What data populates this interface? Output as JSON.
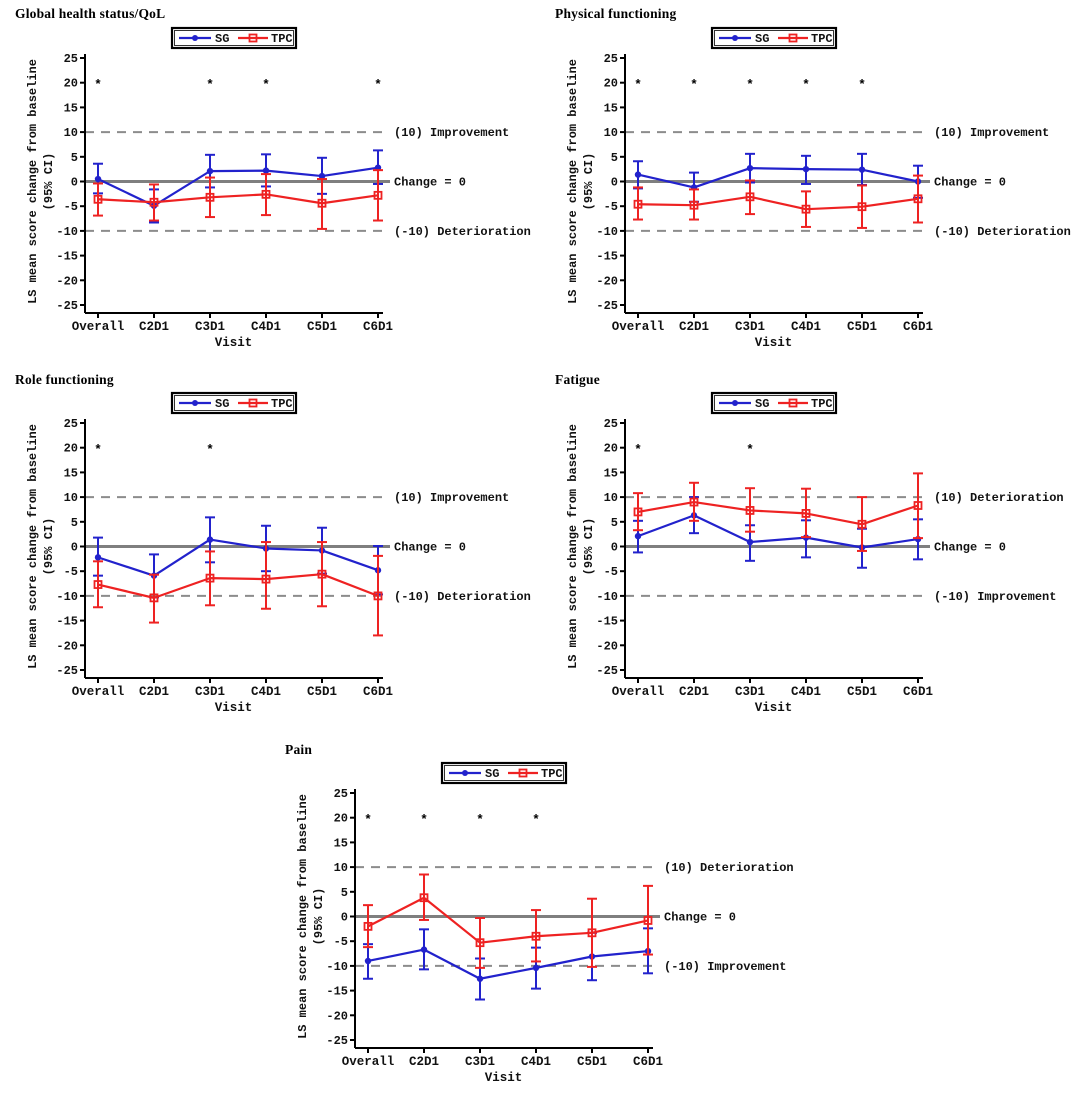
{
  "figure": {
    "x_axis_label": "Visit",
    "y_axis_label_line1": "LS mean score change from baseline",
    "y_axis_label_line2": "(95% CI)",
    "y_ticks": [
      25,
      20,
      15,
      10,
      5,
      0,
      -5,
      -10,
      -15,
      -20,
      -25
    ],
    "y_range": [
      -25,
      25
    ],
    "categories": [
      "Overall",
      "C2D1",
      "C3D1",
      "C4D1",
      "C5D1",
      "C6D1"
    ],
    "legend": [
      {
        "label": "SG",
        "color": "#2222CC",
        "marker": "filled-circle"
      },
      {
        "label": "TPC",
        "color": "#EE2222",
        "marker": "open-square"
      }
    ],
    "colors": {
      "sg": "#2222CC",
      "tpc": "#EE2222",
      "zero_line": "#7F7F7F",
      "ref_dashed": "#8C8C8C",
      "axis": "#000000",
      "asterisk": "#000000",
      "background": "#FFFFFF"
    },
    "significance_symbol": "*",
    "significance_y": 20
  },
  "chart_data": [
    {
      "type": "line",
      "title": "Global health status/QoL",
      "xlabel": "Visit",
      "ylabel": "LS mean score change from baseline (95% CI)",
      "ylim": [
        -25,
        25
      ],
      "categories": [
        "Overall",
        "C2D1",
        "C3D1",
        "C4D1",
        "C5D1",
        "C6D1"
      ],
      "annotations": [
        {
          "y": 10,
          "label": "(10) Improvement"
        },
        {
          "y": 0,
          "label": "Change = 0"
        },
        {
          "y": -10,
          "label": "(-10) Deterioration"
        }
      ],
      "asterisks": [
        "Overall",
        "C3D1",
        "C4D1",
        "C6D1"
      ],
      "series": [
        {
          "name": "SG",
          "mean": [
            0.5,
            -4.9,
            2.1,
            2.2,
            1.1,
            2.8
          ],
          "ci_low": [
            -2.4,
            -8.3,
            -1.2,
            -1.0,
            -2.5,
            -0.5
          ],
          "ci_high": [
            3.6,
            -1.6,
            5.4,
            5.5,
            4.8,
            6.3
          ]
        },
        {
          "name": "TPC",
          "mean": [
            -3.6,
            -4.2,
            -3.2,
            -2.6,
            -4.4,
            -2.8
          ],
          "ci_low": [
            -6.9,
            -7.9,
            -7.2,
            -6.8,
            -9.6,
            -7.9
          ],
          "ci_high": [
            -0.4,
            -0.6,
            0.8,
            1.5,
            0.5,
            2.3
          ]
        }
      ]
    },
    {
      "type": "line",
      "title": "Physical functioning",
      "xlabel": "Visit",
      "ylabel": "LS mean score change from baseline (95% CI)",
      "ylim": [
        -25,
        25
      ],
      "categories": [
        "Overall",
        "C2D1",
        "C3D1",
        "C4D1",
        "C5D1",
        "C6D1"
      ],
      "annotations": [
        {
          "y": 10,
          "label": "(10) Improvement"
        },
        {
          "y": 0,
          "label": "Change = 0"
        },
        {
          "y": -10,
          "label": "(-10) Deterioration"
        }
      ],
      "asterisks": [
        "Overall",
        "C2D1",
        "C3D1",
        "C4D1",
        "C5D1"
      ],
      "series": [
        {
          "name": "SG",
          "mean": [
            1.4,
            -1.2,
            2.7,
            2.5,
            2.4,
            0.0
          ],
          "ci_low": [
            -1.4,
            -4.1,
            -0.2,
            -0.5,
            -0.7,
            -3.3
          ],
          "ci_high": [
            4.1,
            1.8,
            5.6,
            5.2,
            5.6,
            3.2
          ]
        },
        {
          "name": "TPC",
          "mean": [
            -4.6,
            -4.8,
            -3.1,
            -5.6,
            -5.1,
            -3.5
          ],
          "ci_low": [
            -7.7,
            -7.7,
            -6.6,
            -9.2,
            -9.4,
            -8.3
          ],
          "ci_high": [
            -1.2,
            -1.6,
            0.2,
            -2.0,
            -0.8,
            1.2
          ]
        }
      ]
    },
    {
      "type": "line",
      "title": "Role functioning",
      "xlabel": "Visit",
      "ylabel": "LS mean score change from baseline (95% CI)",
      "ylim": [
        -25,
        25
      ],
      "categories": [
        "Overall",
        "C2D1",
        "C3D1",
        "C4D1",
        "C5D1",
        "C6D1"
      ],
      "annotations": [
        {
          "y": 10,
          "label": "(10) Improvement"
        },
        {
          "y": 0,
          "label": "Change = 0"
        },
        {
          "y": -10,
          "label": "(-10) Deterioration"
        }
      ],
      "asterisks": [
        "Overall",
        "C3D1"
      ],
      "series": [
        {
          "name": "SG",
          "mean": [
            -2.2,
            -5.9,
            1.4,
            -0.4,
            -0.8,
            -4.8
          ],
          "ci_low": [
            -5.9,
            -10.3,
            -3.2,
            -5.0,
            -5.5,
            -9.7
          ],
          "ci_high": [
            1.8,
            -1.6,
            5.9,
            4.2,
            3.8,
            0.1
          ]
        },
        {
          "name": "TPC",
          "mean": [
            -7.7,
            -10.4,
            -6.4,
            -6.6,
            -5.6,
            -10.0
          ],
          "ci_low": [
            -12.3,
            -15.4,
            -11.9,
            -12.6,
            -12.1,
            -18.0
          ],
          "ci_high": [
            -3.0,
            -5.7,
            -1.0,
            0.9,
            0.9,
            -1.9
          ]
        }
      ]
    },
    {
      "type": "line",
      "title": "Fatigue",
      "xlabel": "Visit",
      "ylabel": "LS mean score change from baseline (95% CI)",
      "ylim": [
        -25,
        25
      ],
      "categories": [
        "Overall",
        "C2D1",
        "C3D1",
        "C4D1",
        "C5D1",
        "C6D1"
      ],
      "annotations": [
        {
          "y": 10,
          "label": "(10) Deterioration"
        },
        {
          "y": 0,
          "label": "Change = 0"
        },
        {
          "y": -10,
          "label": "(-10) Improvement"
        }
      ],
      "asterisks": [
        "Overall",
        "C3D1"
      ],
      "series": [
        {
          "name": "SG",
          "mean": [
            2.1,
            6.3,
            0.9,
            1.8,
            -0.2,
            1.5
          ],
          "ci_low": [
            -1.2,
            2.7,
            -2.9,
            -2.2,
            -4.3,
            -2.6
          ],
          "ci_high": [
            5.2,
            10.0,
            4.3,
            5.3,
            3.6,
            5.5
          ]
        },
        {
          "name": "TPC",
          "mean": [
            7.0,
            9.0,
            7.3,
            6.7,
            4.5,
            8.3
          ],
          "ci_low": [
            3.3,
            5.2,
            3.0,
            1.9,
            -0.9,
            1.7
          ],
          "ci_high": [
            10.8,
            12.9,
            11.8,
            11.7,
            10.0,
            14.8
          ]
        }
      ]
    },
    {
      "type": "line",
      "title": "Pain",
      "xlabel": "Visit",
      "ylabel": "LS mean score change from baseline (95% CI)",
      "ylim": [
        -25,
        25
      ],
      "categories": [
        "Overall",
        "C2D1",
        "C3D1",
        "C4D1",
        "C5D1",
        "C6D1"
      ],
      "annotations": [
        {
          "y": 10,
          "label": "(10) Deterioration"
        },
        {
          "y": 0,
          "label": "Change = 0"
        },
        {
          "y": -10,
          "label": "(-10) Improvement"
        }
      ],
      "asterisks": [
        "Overall",
        "C2D1",
        "C3D1",
        "C4D1"
      ],
      "series": [
        {
          "name": "SG",
          "mean": [
            -9.0,
            -6.7,
            -12.6,
            -10.4,
            -8.1,
            -7.0
          ],
          "ci_low": [
            -12.6,
            -10.7,
            -16.8,
            -14.6,
            -12.9,
            -11.5
          ],
          "ci_high": [
            -5.6,
            -2.6,
            -8.5,
            -6.3,
            -3.3,
            -2.4
          ]
        },
        {
          "name": "TPC",
          "mean": [
            -2.0,
            3.8,
            -5.3,
            -4.0,
            -3.3,
            -0.8
          ],
          "ci_low": [
            -6.2,
            -0.7,
            -10.4,
            -9.1,
            -10.2,
            -7.7
          ],
          "ci_high": [
            2.3,
            8.5,
            -0.3,
            1.3,
            3.6,
            6.2
          ]
        }
      ]
    }
  ]
}
